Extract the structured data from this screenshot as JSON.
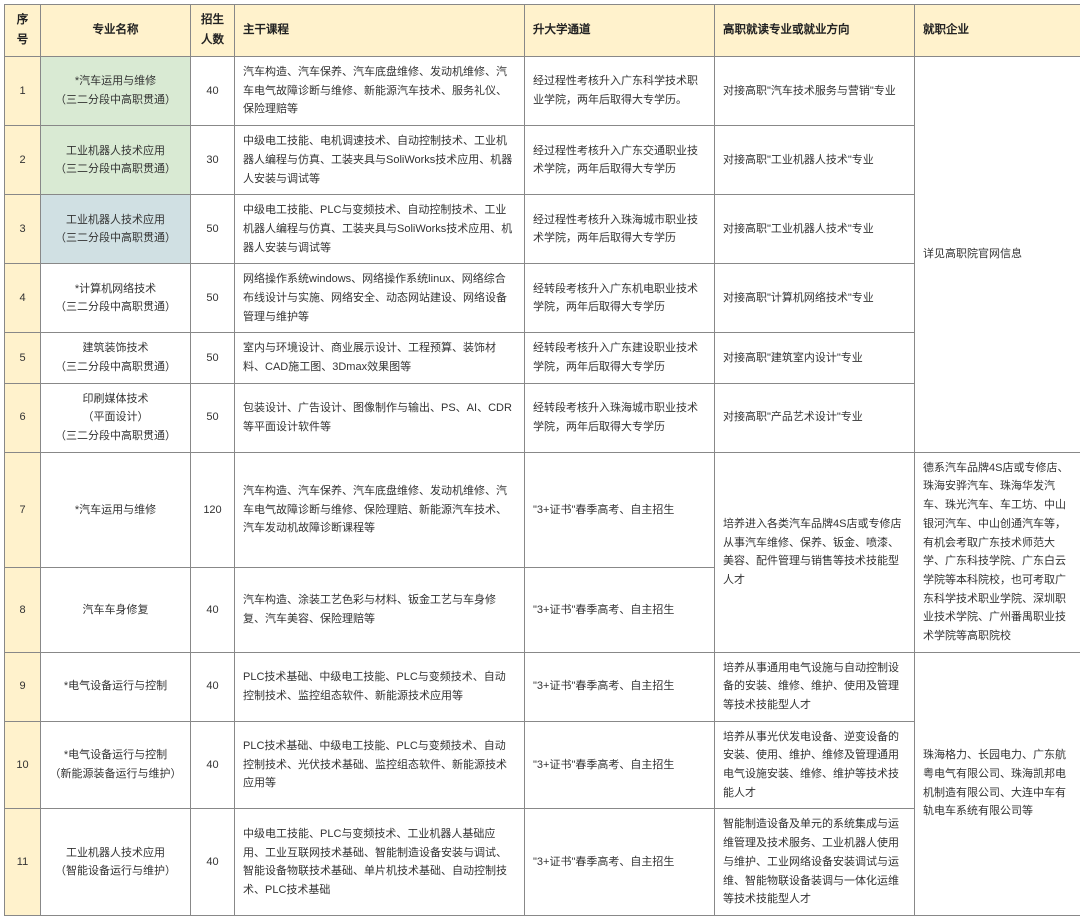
{
  "headers": {
    "seq": "序号",
    "name": "专业名称",
    "num": "招生\n人数",
    "course": "主干课程",
    "path": "升大学通道",
    "dir": "高职就读专业或就业方向",
    "emp": "就职企业"
  },
  "rows": [
    {
      "seq": "1",
      "name": "*汽车运用与维修\n（三二分段中高职贯通）",
      "num": "40",
      "course": "汽车构造、汽车保养、汽车底盘维修、发动机维修、汽车电气故障诊断与维修、新能源汽车技术、服务礼仪、保险理赔等",
      "path": "经过程性考核升入广东科学技术职业学院，两年后取得大专学历。",
      "dir": "对接高职\"汽车技术服务与营销\"专业",
      "hl": "hl"
    },
    {
      "seq": "2",
      "name": "工业机器人技术应用\n（三二分段中高职贯通）",
      "num": "30",
      "course": "中级电工技能、电机调速技术、自动控制技术、工业机器人编程与仿真、工装夹具与SoliWorks技术应用、机器人安装与调试等",
      "path": "经过程性考核升入广东交通职业技术学院，两年后取得大专学历",
      "dir": "对接高职\"工业机器人技术\"专业",
      "hl": "hl"
    },
    {
      "seq": "3",
      "name": "工业机器人技术应用\n（三二分段中高职贯通）",
      "num": "50",
      "course": "中级电工技能、PLC与变频技术、自动控制技术、工业机器人编程与仿真、工装夹具与SoliWorks技术应用、机器人安装与调试等",
      "path": "经过程性考核升入珠海城市职业技术学院，两年后取得大专学历",
      "dir": "对接高职\"工业机器人技术\"专业",
      "hl": "hl2"
    },
    {
      "seq": "4",
      "name": "*计算机网络技术\n（三二分段中高职贯通）",
      "num": "50",
      "course": "网络操作系统windows、网络操作系统linux、网络综合布线设计与实施、网络安全、动态网站建设、网络设备管理与维护等",
      "path": "经转段考核升入广东机电职业技术学院，两年后取得大专学历",
      "dir": "对接高职\"计算机网络技术\"专业"
    },
    {
      "seq": "5",
      "name": "建筑装饰技术\n（三二分段中高职贯通）",
      "num": "50",
      "course": "室内与环境设计、商业展示设计、工程预算、装饰材料、CAD施工图、3Dmax效果图等",
      "path": "经转段考核升入广东建设职业技术学院，两年后取得大专学历",
      "dir": "对接高职\"建筑室内设计\"专业"
    },
    {
      "seq": "6",
      "name": "印刷媒体技术\n（平面设计）\n（三二分段中高职贯通）",
      "num": "50",
      "course": "包装设计、广告设计、图像制作与输出、PS、AI、CDR等平面设计软件等",
      "path": "经转段考核升入珠海城市职业技术学院，两年后取得大专学历",
      "dir": "对接高职\"产品艺术设计\"专业"
    },
    {
      "seq": "7",
      "name": "*汽车运用与维修",
      "num": "120",
      "course": "汽车构造、汽车保养、汽车底盘维修、发动机维修、汽车电气故障诊断与维修、保险理赔、新能源汽车技术、汽车发动机故障诊断课程等",
      "path": "\"3+证书\"春季高考、自主招生"
    },
    {
      "seq": "8",
      "name": "汽车车身修复",
      "num": "40",
      "course": "汽车构造、涂装工艺色彩与材料、钣金工艺与车身修复、汽车美容、保险理赔等",
      "path": "\"3+证书\"春季高考、自主招生"
    },
    {
      "seq": "9",
      "name": "*电气设备运行与控制",
      "num": "40",
      "course": "PLC技术基础、中级电工技能、PLC与变频技术、自动控制技术、监控组态软件、新能源技术应用等",
      "path": "\"3+证书\"春季高考、自主招生",
      "dir": "培养从事通用电气设施与自动控制设备的安装、维修、维护、使用及管理等技术技能型人才"
    },
    {
      "seq": "10",
      "name": "*电气设备运行与控制\n（新能源装备运行与维护）",
      "num": "40",
      "course": "PLC技术基础、中级电工技能、PLC与变频技术、自动控制技术、光伏技术基础、监控组态软件、新能源技术应用等",
      "path": "\"3+证书\"春季高考、自主招生",
      "dir": "培养从事光伏发电设备、逆变设备的安装、使用、维护、维修及管理通用电气设施安装、维修、维护等技术技能人才"
    },
    {
      "seq": "11",
      "name": "工业机器人技术应用\n（智能设备运行与维护）",
      "num": "40",
      "course": "中级电工技能、PLC与变频技术、工业机器人基础应用、工业互联网技术基础、智能制造设备安装与调试、智能设备物联技术基础、单片机技术基础、自动控制技术、PLC技术基础",
      "path": "\"3+证书\"春季高考、自主招生",
      "dir": "智能制造设备及单元的系统集成与运维管理及技术服务、工业机器人使用与维护、工业网络设备安装调试与运维、智能物联设备装调与一体化运维等技术技能型人才"
    }
  ],
  "merged": {
    "emp1": "详见高职院官网信息",
    "dir2": "培养进入各类汽车品牌4S店或专修店从事汽车维修、保养、钣金、喷漆、美容、配件管理与销售等技术技能型人才",
    "emp2": "德系汽车品牌4S店或专修店、珠海安骅汽车、珠海华发汽车、珠光汽车、车工坊、中山银河汽车、中山创通汽车等，有机会考取广东技术师范大学、广东科技学院、广东白云学院等本科院校，也可考取广东科学技术职业学院、深圳职业技术学院、广州番禺职业技术学院等高职院校",
    "emp3": "珠海格力、长园电力、广东航粤电气有限公司、珠海凯邦电机制造有限公司、大连中车有轨电车系统有限公司等"
  }
}
